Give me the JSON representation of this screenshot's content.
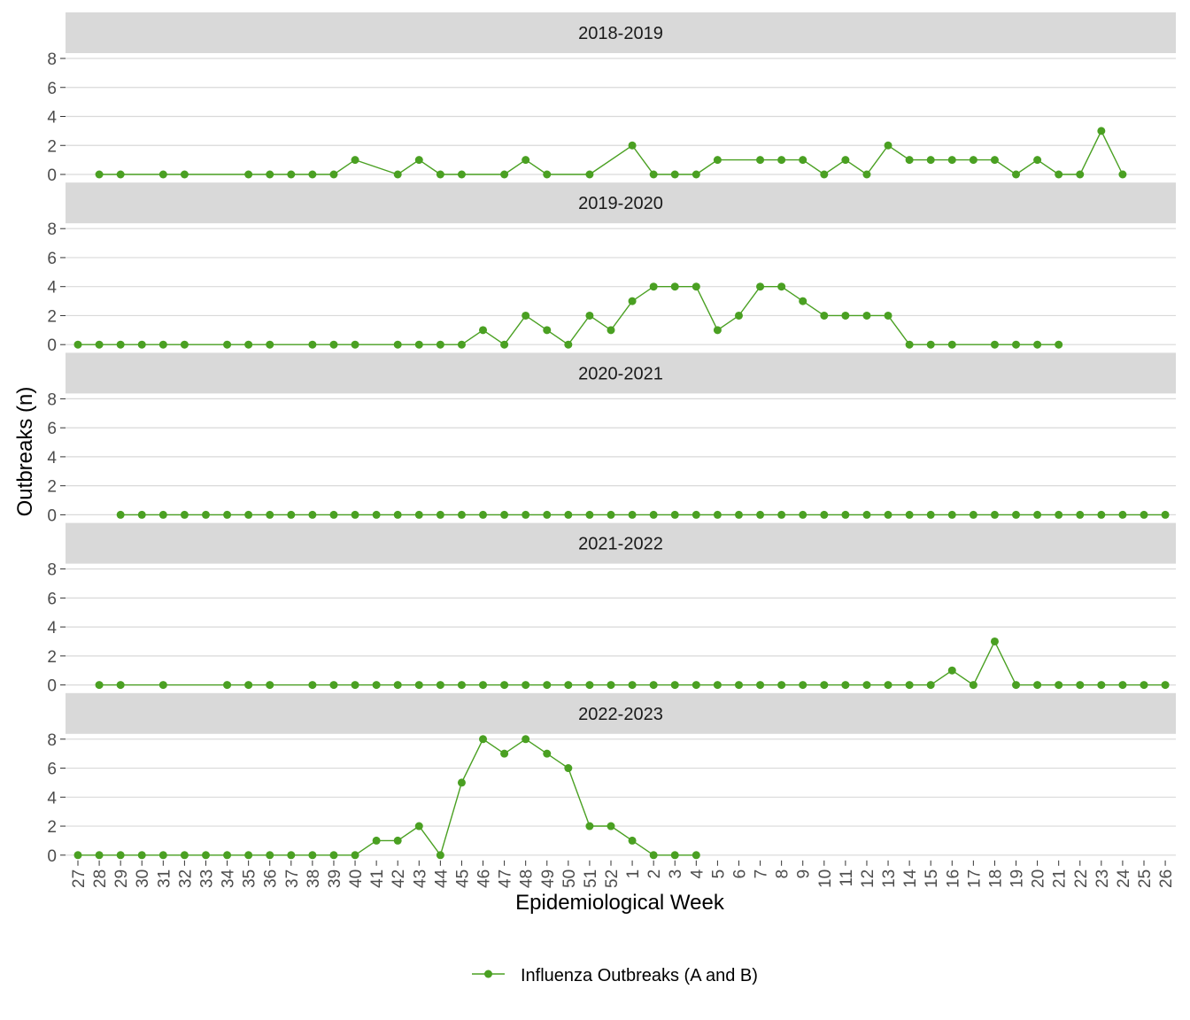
{
  "chart_data": {
    "type": "line",
    "xlabel": "Epidemiological Week",
    "ylabel": "Outbreaks (n)",
    "ylim": [
      0,
      8
    ],
    "yticks": [
      0,
      2,
      4,
      6,
      8
    ],
    "categories": [
      "27",
      "28",
      "29",
      "30",
      "31",
      "32",
      "33",
      "34",
      "35",
      "36",
      "37",
      "38",
      "39",
      "40",
      "41",
      "42",
      "43",
      "44",
      "45",
      "46",
      "47",
      "48",
      "49",
      "50",
      "51",
      "52",
      "1",
      "2",
      "3",
      "4",
      "5",
      "6",
      "7",
      "8",
      "9",
      "10",
      "11",
      "12",
      "13",
      "14",
      "15",
      "16",
      "17",
      "18",
      "19",
      "20",
      "21",
      "22",
      "23",
      "24",
      "25",
      "26"
    ],
    "legend": {
      "label": "Influenza Outbreaks (A and B)",
      "position": "bottom"
    },
    "color": "#4aa022",
    "grid": true,
    "panels": [
      {
        "season": "2018-2019",
        "points": [
          [
            "28",
            0
          ],
          [
            "29",
            0
          ],
          [
            "31",
            0
          ],
          [
            "32",
            0
          ],
          [
            "35",
            0
          ],
          [
            "36",
            0
          ],
          [
            "37",
            0
          ],
          [
            "38",
            0
          ],
          [
            "39",
            0
          ],
          [
            "40",
            1
          ],
          [
            "42",
            0
          ],
          [
            "43",
            1
          ],
          [
            "44",
            0
          ],
          [
            "45",
            0
          ],
          [
            "47",
            0
          ],
          [
            "48",
            1
          ],
          [
            "49",
            0
          ],
          [
            "51",
            0
          ],
          [
            "1",
            2
          ],
          [
            "2",
            0
          ],
          [
            "3",
            0
          ],
          [
            "4",
            0
          ],
          [
            "5",
            1
          ],
          [
            "7",
            1
          ],
          [
            "8",
            1
          ],
          [
            "9",
            1
          ],
          [
            "10",
            0
          ],
          [
            "11",
            1
          ],
          [
            "12",
            0
          ],
          [
            "13",
            2
          ],
          [
            "14",
            1
          ],
          [
            "15",
            1
          ],
          [
            "16",
            1
          ],
          [
            "17",
            1
          ],
          [
            "18",
            1
          ],
          [
            "19",
            0
          ],
          [
            "20",
            1
          ],
          [
            "21",
            0
          ],
          [
            "22",
            0
          ],
          [
            "23",
            3
          ],
          [
            "24",
            0
          ]
        ]
      },
      {
        "season": "2019-2020",
        "points": [
          [
            "27",
            0
          ],
          [
            "28",
            0
          ],
          [
            "29",
            0
          ],
          [
            "30",
            0
          ],
          [
            "31",
            0
          ],
          [
            "32",
            0
          ],
          [
            "34",
            0
          ],
          [
            "35",
            0
          ],
          [
            "36",
            0
          ],
          [
            "38",
            0
          ],
          [
            "39",
            0
          ],
          [
            "40",
            0
          ],
          [
            "42",
            0
          ],
          [
            "43",
            0
          ],
          [
            "44",
            0
          ],
          [
            "45",
            0
          ],
          [
            "46",
            1
          ],
          [
            "47",
            0
          ],
          [
            "48",
            2
          ],
          [
            "49",
            1
          ],
          [
            "50",
            0
          ],
          [
            "51",
            2
          ],
          [
            "52",
            1
          ],
          [
            "1",
            3
          ],
          [
            "2",
            4
          ],
          [
            "3",
            4
          ],
          [
            "4",
            4
          ],
          [
            "5",
            1
          ],
          [
            "6",
            2
          ],
          [
            "7",
            4
          ],
          [
            "8",
            4
          ],
          [
            "9",
            3
          ],
          [
            "10",
            2
          ],
          [
            "11",
            2
          ],
          [
            "12",
            2
          ],
          [
            "13",
            2
          ],
          [
            "14",
            0
          ],
          [
            "15",
            0
          ],
          [
            "16",
            0
          ],
          [
            "18",
            0
          ],
          [
            "19",
            0
          ],
          [
            "20",
            0
          ],
          [
            "21",
            0
          ]
        ]
      },
      {
        "season": "2020-2021",
        "points": [
          [
            "29",
            0
          ],
          [
            "30",
            0
          ],
          [
            "31",
            0
          ],
          [
            "32",
            0
          ],
          [
            "33",
            0
          ],
          [
            "34",
            0
          ],
          [
            "35",
            0
          ],
          [
            "36",
            0
          ],
          [
            "37",
            0
          ],
          [
            "38",
            0
          ],
          [
            "39",
            0
          ],
          [
            "40",
            0
          ],
          [
            "41",
            0
          ],
          [
            "42",
            0
          ],
          [
            "43",
            0
          ],
          [
            "44",
            0
          ],
          [
            "45",
            0
          ],
          [
            "46",
            0
          ],
          [
            "47",
            0
          ],
          [
            "48",
            0
          ],
          [
            "49",
            0
          ],
          [
            "50",
            0
          ],
          [
            "51",
            0
          ],
          [
            "52",
            0
          ],
          [
            "1",
            0
          ],
          [
            "2",
            0
          ],
          [
            "3",
            0
          ],
          [
            "4",
            0
          ],
          [
            "5",
            0
          ],
          [
            "6",
            0
          ],
          [
            "7",
            0
          ],
          [
            "8",
            0
          ],
          [
            "9",
            0
          ],
          [
            "10",
            0
          ],
          [
            "11",
            0
          ],
          [
            "12",
            0
          ],
          [
            "13",
            0
          ],
          [
            "14",
            0
          ],
          [
            "15",
            0
          ],
          [
            "16",
            0
          ],
          [
            "17",
            0
          ],
          [
            "18",
            0
          ],
          [
            "19",
            0
          ],
          [
            "20",
            0
          ],
          [
            "21",
            0
          ],
          [
            "22",
            0
          ],
          [
            "23",
            0
          ],
          [
            "24",
            0
          ],
          [
            "25",
            0
          ],
          [
            "26",
            0
          ]
        ]
      },
      {
        "season": "2021-2022",
        "points": [
          [
            "28",
            0
          ],
          [
            "29",
            0
          ],
          [
            "31",
            0
          ],
          [
            "34",
            0
          ],
          [
            "35",
            0
          ],
          [
            "36",
            0
          ],
          [
            "38",
            0
          ],
          [
            "39",
            0
          ],
          [
            "40",
            0
          ],
          [
            "41",
            0
          ],
          [
            "42",
            0
          ],
          [
            "43",
            0
          ],
          [
            "44",
            0
          ],
          [
            "45",
            0
          ],
          [
            "46",
            0
          ],
          [
            "47",
            0
          ],
          [
            "48",
            0
          ],
          [
            "49",
            0
          ],
          [
            "50",
            0
          ],
          [
            "51",
            0
          ],
          [
            "52",
            0
          ],
          [
            "1",
            0
          ],
          [
            "2",
            0
          ],
          [
            "3",
            0
          ],
          [
            "4",
            0
          ],
          [
            "5",
            0
          ],
          [
            "6",
            0
          ],
          [
            "7",
            0
          ],
          [
            "8",
            0
          ],
          [
            "9",
            0
          ],
          [
            "10",
            0
          ],
          [
            "11",
            0
          ],
          [
            "12",
            0
          ],
          [
            "13",
            0
          ],
          [
            "14",
            0
          ],
          [
            "15",
            0
          ],
          [
            "16",
            1
          ],
          [
            "17",
            0
          ],
          [
            "18",
            3
          ],
          [
            "19",
            0
          ],
          [
            "20",
            0
          ],
          [
            "21",
            0
          ],
          [
            "22",
            0
          ],
          [
            "23",
            0
          ],
          [
            "24",
            0
          ],
          [
            "25",
            0
          ],
          [
            "26",
            0
          ]
        ]
      },
      {
        "season": "2022-2023",
        "points": [
          [
            "27",
            0
          ],
          [
            "28",
            0
          ],
          [
            "29",
            0
          ],
          [
            "30",
            0
          ],
          [
            "31",
            0
          ],
          [
            "32",
            0
          ],
          [
            "33",
            0
          ],
          [
            "34",
            0
          ],
          [
            "35",
            0
          ],
          [
            "36",
            0
          ],
          [
            "37",
            0
          ],
          [
            "38",
            0
          ],
          [
            "39",
            0
          ],
          [
            "40",
            0
          ],
          [
            "41",
            1
          ],
          [
            "42",
            1
          ],
          [
            "43",
            2
          ],
          [
            "44",
            0
          ],
          [
            "45",
            5
          ],
          [
            "46",
            8
          ],
          [
            "47",
            7
          ],
          [
            "48",
            8
          ],
          [
            "49",
            7
          ],
          [
            "50",
            6
          ],
          [
            "51",
            2
          ],
          [
            "52",
            2
          ],
          [
            "1",
            1
          ],
          [
            "2",
            0
          ],
          [
            "3",
            0
          ],
          [
            "4",
            0
          ]
        ]
      }
    ]
  }
}
